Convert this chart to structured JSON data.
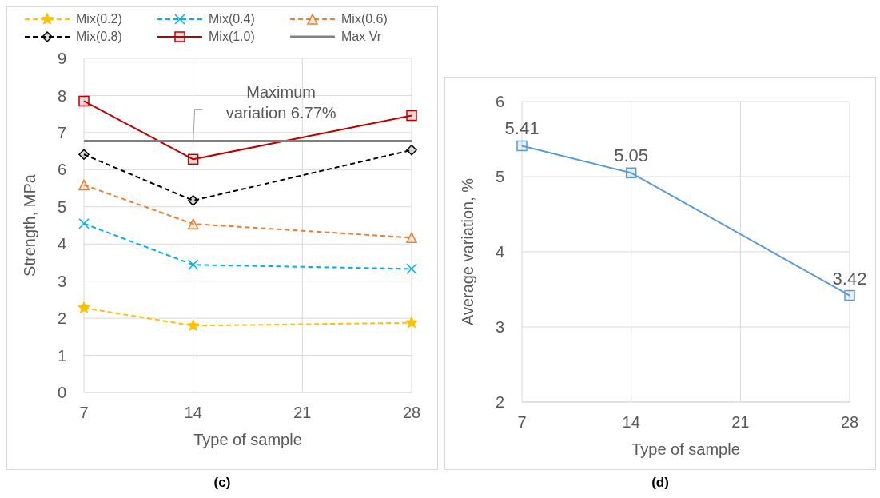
{
  "chart_data": [
    {
      "type": "line",
      "title": "(c)",
      "xlabel": "Type of sample",
      "ylabel": "Strength, MPa",
      "x": [
        7,
        14,
        28
      ],
      "xlim": [
        7,
        28
      ],
      "xticks": [
        7,
        14,
        21,
        28
      ],
      "ylim": [
        0,
        9
      ],
      "yticks": [
        0,
        1,
        2,
        3,
        4,
        5,
        6,
        7,
        8,
        9
      ],
      "grid": true,
      "legend": "top",
      "series": [
        {
          "name": "Mix(0.2)",
          "color": "#ffc000",
          "values": [
            2.28,
            1.8,
            1.88
          ],
          "marker": "star",
          "line_style": "dashed"
        },
        {
          "name": "Mix(0.4)",
          "color": "#00b0f0",
          "values": [
            4.55,
            3.44,
            3.33
          ],
          "marker": "cross",
          "line_style": "dashed"
        },
        {
          "name": "Mix(0.6)",
          "color": "#ed7d31",
          "values": [
            5.59,
            4.54,
            4.17
          ],
          "marker": "triangle",
          "line_style": "dashed"
        },
        {
          "name": "Mix(0.8)",
          "color": "#000000",
          "values": [
            6.41,
            5.17,
            6.53
          ],
          "marker": "diamond",
          "line_style": "dashed"
        },
        {
          "name": "Mix(1.0)",
          "color": "#c00000",
          "values": [
            7.85,
            6.28,
            7.46
          ],
          "marker": "square",
          "line_style": "solid"
        },
        {
          "name": "Max Vr",
          "color": "#808080",
          "values": [
            6.77,
            6.77,
            6.77
          ],
          "marker": "none",
          "line_style": "solid"
        }
      ],
      "annotations": [
        {
          "text": "Maximum variation 6.77%",
          "x": 14,
          "y": 6.77
        }
      ]
    },
    {
      "type": "line",
      "title": "(d)",
      "xlabel": "Type of sample",
      "ylabel": "Average variation, %",
      "x": [
        7,
        14,
        28
      ],
      "xlim": [
        7,
        28
      ],
      "xticks": [
        7,
        14,
        21,
        28
      ],
      "ylim": [
        2,
        6
      ],
      "yticks": [
        2,
        3,
        4,
        5,
        6
      ],
      "grid": true,
      "marker": "square",
      "line_style": "solid",
      "data_labels": true,
      "series": [
        {
          "color": "#5b9bd5",
          "values": [
            5.41,
            5.05,
            3.42
          ]
        }
      ]
    }
  ]
}
